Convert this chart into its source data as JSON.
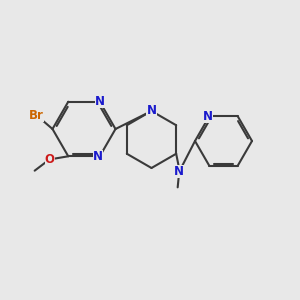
{
  "bg_color": "#e8e8e8",
  "bond_color": "#3a3a3a",
  "N_color": "#1a1acc",
  "O_color": "#cc1a1a",
  "Br_color": "#cc6600",
  "line_width": 1.5,
  "font_size": 8.5,
  "fig_size": [
    3.0,
    3.0
  ],
  "dpi": 100,
  "xlim": [
    0,
    10
  ],
  "ylim": [
    0,
    10
  ]
}
